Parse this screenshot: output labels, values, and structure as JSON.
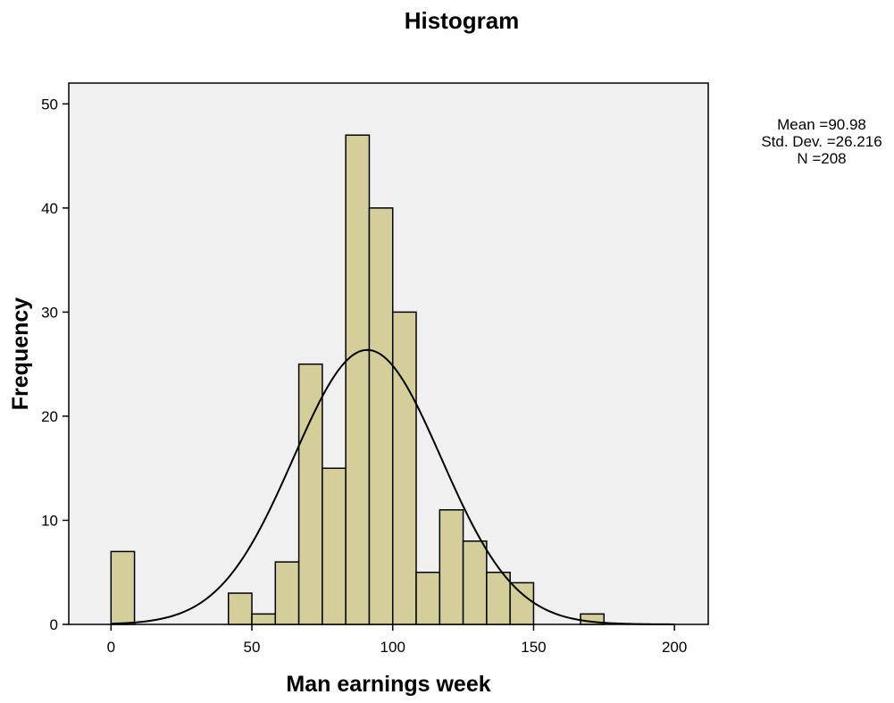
{
  "chart_data": {
    "type": "bar",
    "title": "Histogram",
    "xlabel": "Man earnings week",
    "ylabel": "Frequency",
    "xlim": [
      -15,
      212
    ],
    "ylim": [
      0,
      52
    ],
    "x_ticks": [
      0,
      50,
      100,
      150,
      200
    ],
    "y_ticks": [
      0,
      10,
      20,
      30,
      40,
      50
    ],
    "grid": false,
    "legend": "none",
    "bin_width": 8.33,
    "bins": [
      {
        "start": 0,
        "end": 8.33,
        "count": 7
      },
      {
        "start": 41.67,
        "end": 50,
        "count": 3
      },
      {
        "start": 50,
        "end": 58.33,
        "count": 1
      },
      {
        "start": 58.33,
        "end": 66.67,
        "count": 6
      },
      {
        "start": 66.67,
        "end": 75,
        "count": 25
      },
      {
        "start": 75,
        "end": 83.33,
        "count": 15
      },
      {
        "start": 83.33,
        "end": 91.67,
        "count": 47
      },
      {
        "start": 91.67,
        "end": 100,
        "count": 40
      },
      {
        "start": 100,
        "end": 108.33,
        "count": 30
      },
      {
        "start": 108.33,
        "end": 116.67,
        "count": 5
      },
      {
        "start": 116.67,
        "end": 125,
        "count": 11
      },
      {
        "start": 125,
        "end": 133.33,
        "count": 8
      },
      {
        "start": 133.33,
        "end": 141.67,
        "count": 5
      },
      {
        "start": 141.67,
        "end": 150,
        "count": 4
      },
      {
        "start": 166.67,
        "end": 175,
        "count": 1
      }
    ],
    "stats": {
      "mean_label": "Mean =90.98",
      "std_label": "Std. Dev. =26.216",
      "n_label": "N =208",
      "mean": 90.98,
      "std_dev": 26.216,
      "n": 208
    },
    "colors": {
      "bar_fill": "#d4cf9a",
      "plot_background": "#f0f0f0",
      "stroke": "#000000"
    }
  }
}
